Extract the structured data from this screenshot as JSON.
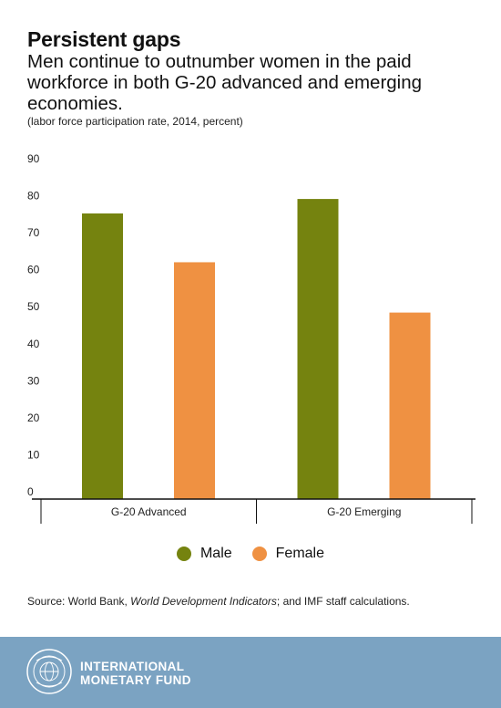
{
  "header": {
    "title": "Persistent gaps",
    "subtitle": "Men continue to outnumber women in the paid workforce in both G-20 advanced and emerging economies.",
    "note": "(labor force participation rate, 2014, percent)"
  },
  "chart_data": {
    "type": "bar",
    "categories": [
      "G-20 Advanced",
      "G-20 Emerging"
    ],
    "series": [
      {
        "name": "Male",
        "values": [
          77.2,
          81.1
        ],
        "color": "#75830f"
      },
      {
        "name": "Female",
        "values": [
          64.0,
          50.4
        ],
        "color": "#ef9142"
      }
    ],
    "ylim": [
      0,
      90
    ],
    "yticks": [
      0,
      10,
      20,
      30,
      40,
      50,
      60,
      70,
      80,
      90
    ],
    "grid": false,
    "legend_position": "bottom"
  },
  "legend": {
    "male": "Male",
    "female": "Female"
  },
  "source": {
    "prefix": "Source: World Bank, ",
    "italic": "World Development Indicators",
    "suffix": "; and IMF staff calculations."
  },
  "footer": {
    "line1": "INTERNATIONAL",
    "line2": "MONETARY FUND",
    "bg_color": "#7ba3c2",
    "logo_icon": "imf-seal-icon"
  }
}
